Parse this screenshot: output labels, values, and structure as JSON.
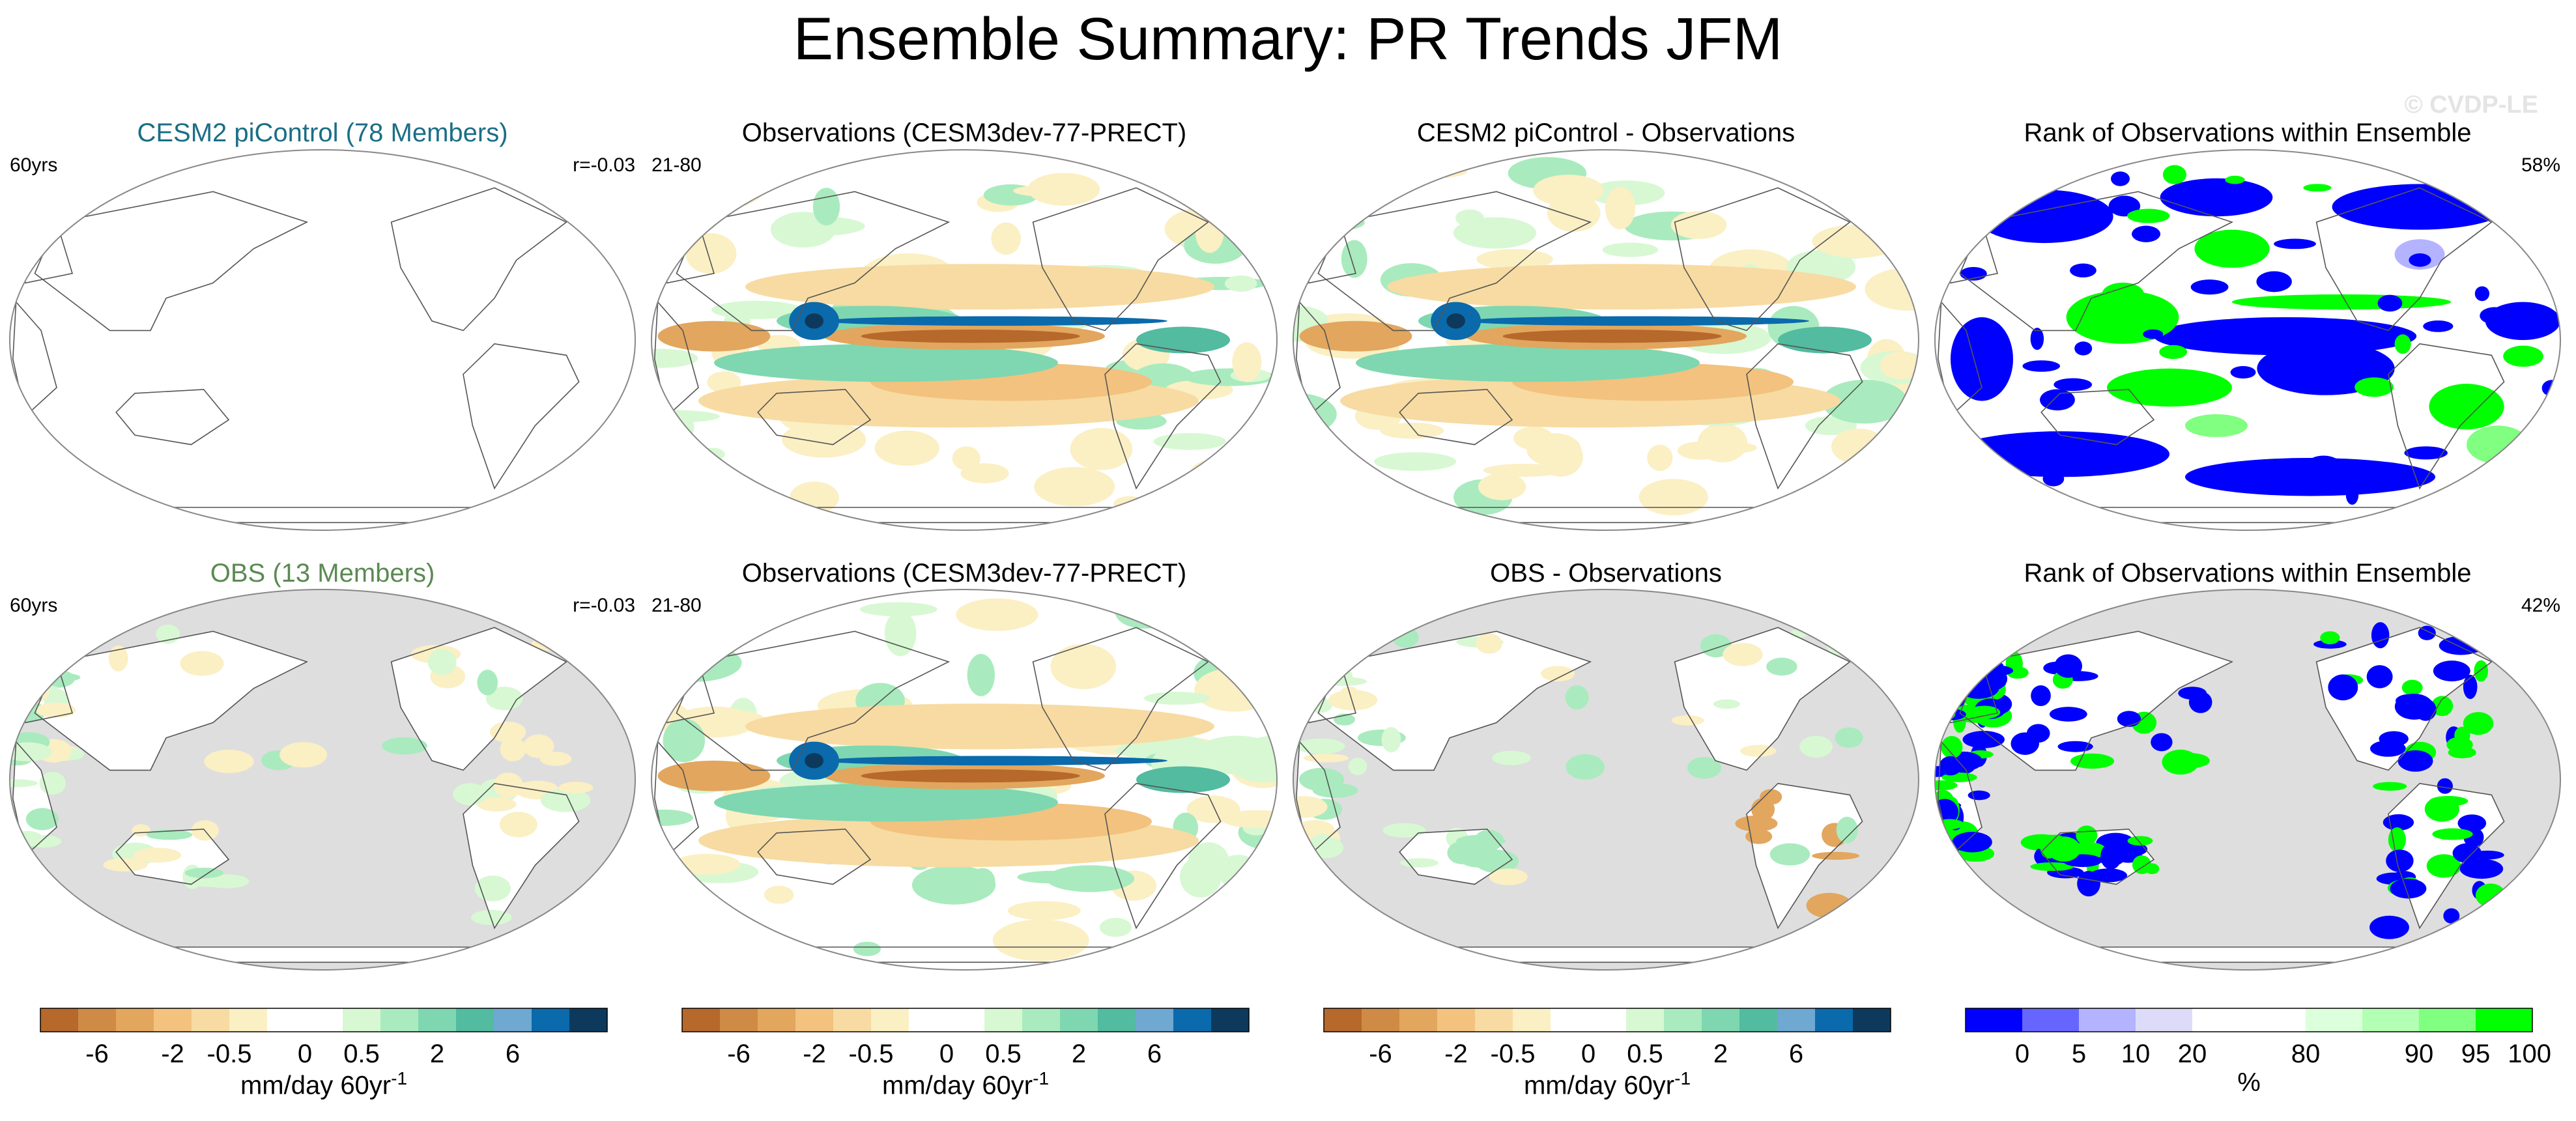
{
  "title": "Ensemble Summary: PR Trends JFM",
  "watermark": "© CVDP-LE",
  "colors": {
    "ensemble_title_top": "#1b6e86",
    "ensemble_title_bottom": "#5b8a52",
    "land_mask": "#dedede",
    "diverging": [
      "#b6692a",
      "#cf8b46",
      "#e2a65e",
      "#f2c27e",
      "#f7dba2",
      "#fbefc4",
      "#ffffff",
      "#ffffff",
      "#d7f8d3",
      "#a9ebbe",
      "#7ed7b0",
      "#52bba0",
      "#6fa8d0",
      "#0a6aac",
      "#0d3a5c"
    ],
    "rank": [
      "#0000ff",
      "#6666ff",
      "#b3b3ff",
      "#dcdcf8",
      "#ffffff",
      "#ffffff",
      "#dcffdc",
      "#b3ffb3",
      "#80ff80",
      "#00ff00"
    ]
  },
  "rows": [
    {
      "panels": [
        {
          "title": "CESM2 piControl (78 Members)",
          "left_label": "60yrs",
          "right_label": "r=-0.03",
          "kind": "ensemble"
        },
        {
          "title": "Observations (CESM3dev-77-PRECT)",
          "left_label": "21-80",
          "right_label": "",
          "kind": "obs"
        },
        {
          "title": "CESM2 piControl - Observations",
          "left_label": "",
          "right_label": "",
          "kind": "diff"
        },
        {
          "title": "Rank of Observations within Ensemble",
          "left_label": "",
          "right_label": "58%",
          "kind": "rank"
        }
      ]
    },
    {
      "panels": [
        {
          "title": "OBS (13 Members)",
          "left_label": "60yrs",
          "right_label": "r=-0.03",
          "kind": "ensemble"
        },
        {
          "title": "Observations (CESM3dev-77-PRECT)",
          "left_label": "21-80",
          "right_label": "",
          "kind": "obs"
        },
        {
          "title": "OBS - Observations",
          "left_label": "",
          "right_label": "",
          "kind": "diff"
        },
        {
          "title": "Rank of Observations within Ensemble",
          "left_label": "",
          "right_label": "42%",
          "kind": "rank"
        }
      ]
    }
  ],
  "colorbars": [
    {
      "label": "mm/day 60yr",
      "label_sup": "-1",
      "ticks": [
        "-6",
        "-2",
        "-0.5",
        "0",
        "0.5",
        "2",
        "6"
      ]
    },
    {
      "label": "mm/day 60yr",
      "label_sup": "-1",
      "ticks": [
        "-6",
        "-2",
        "-0.5",
        "0",
        "0.5",
        "2",
        "6"
      ]
    },
    {
      "label": "mm/day 60yr",
      "label_sup": "-1",
      "ticks": [
        "-6",
        "-2",
        "-0.5",
        "0",
        "0.5",
        "2",
        "6"
      ]
    },
    {
      "label": "%",
      "label_sup": "",
      "ticks": [
        "0",
        "5",
        "10",
        "20",
        "80",
        "90",
        "95",
        "100"
      ]
    }
  ],
  "chart_data": {
    "type": "heatmap",
    "title": "Ensemble Summary: PR Trends JFM",
    "units": "mm/day 60yr-1",
    "diverging_levels": [
      -8,
      -6,
      -4,
      -2,
      -1,
      -0.5,
      -0.2,
      0,
      0.2,
      0.5,
      1,
      2,
      4,
      6,
      8
    ],
    "rank_levels": [
      0,
      5,
      10,
      20,
      50,
      80,
      90,
      95,
      100
    ]
  }
}
